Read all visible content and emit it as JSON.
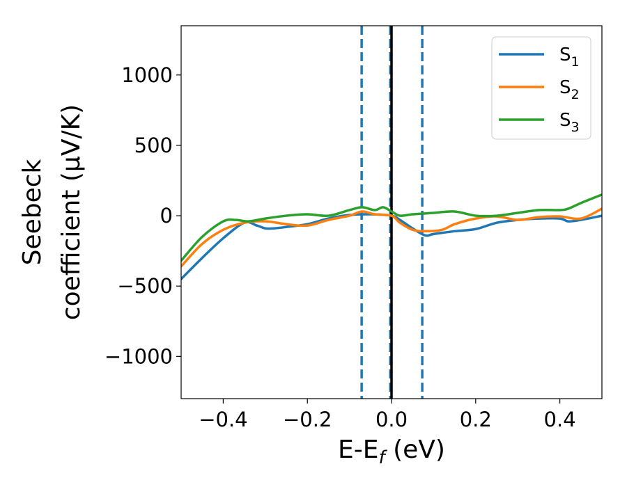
{
  "chart_data": {
    "type": "line",
    "xlabel_main": "E-E",
    "xlabel_sub": "f",
    "xlabel_unit": " (eV)",
    "ylabel_line1": "Seebeck",
    "ylabel_line2": "coefficient  (μV/K)",
    "xlim": [
      -0.5,
      0.5
    ],
    "ylim": [
      -1300,
      1350
    ],
    "x_ticks": [
      -0.4,
      -0.2,
      0.0,
      0.2,
      0.4
    ],
    "x_tick_labels": [
      "−0.4",
      "−0.2",
      "0.0",
      "0.2",
      "0.4"
    ],
    "y_ticks": [
      -1000,
      -500,
      0,
      500,
      1000
    ],
    "y_tick_labels": [
      "−1000",
      "−500",
      "0",
      "500",
      "1000"
    ],
    "legend_position": "top-right",
    "vlines": [
      {
        "x": -0.071,
        "style": "dashed",
        "color": "#1f77b4"
      },
      {
        "x": -0.003,
        "style": "dashed",
        "color": "#1f77b4"
      },
      {
        "x": 0.0,
        "style": "solid",
        "color": "#000000"
      },
      {
        "x": 0.073,
        "style": "dashed",
        "color": "#1f77b4"
      }
    ],
    "series": [
      {
        "name": "S",
        "sub": "1",
        "color": "#1f77b4",
        "x": [
          -0.5,
          -0.45,
          -0.4,
          -0.35,
          -0.32,
          -0.3,
          -0.28,
          -0.25,
          -0.2,
          -0.15,
          -0.1,
          -0.05,
          0.0,
          0.02,
          0.05,
          0.08,
          0.1,
          0.15,
          0.2,
          0.25,
          0.3,
          0.35,
          0.4,
          0.42,
          0.45,
          0.5
        ],
        "values": [
          -450,
          -300,
          -160,
          -50,
          -70,
          -90,
          -90,
          -80,
          -60,
          -20,
          5,
          10,
          0,
          -30,
          -90,
          -140,
          -130,
          -110,
          -95,
          -50,
          -30,
          -20,
          -20,
          -40,
          -30,
          0
        ]
      },
      {
        "name": "S",
        "sub": "2",
        "color": "#ff7f0e",
        "x": [
          -0.5,
          -0.45,
          -0.4,
          -0.35,
          -0.3,
          -0.25,
          -0.2,
          -0.15,
          -0.1,
          -0.07,
          -0.04,
          0.0,
          0.02,
          0.05,
          0.08,
          0.12,
          0.15,
          0.2,
          0.25,
          0.3,
          0.35,
          0.4,
          0.45,
          0.5
        ],
        "values": [
          -360,
          -200,
          -100,
          -50,
          -40,
          -60,
          -70,
          -30,
          0,
          30,
          10,
          0,
          -50,
          -100,
          -110,
          -100,
          -60,
          -20,
          -5,
          -30,
          -10,
          -5,
          -20,
          50
        ]
      },
      {
        "name": "S",
        "sub": "3",
        "color": "#2ca02c",
        "x": [
          -0.5,
          -0.45,
          -0.4,
          -0.37,
          -0.34,
          -0.3,
          -0.25,
          -0.2,
          -0.15,
          -0.1,
          -0.07,
          -0.04,
          -0.02,
          0.0,
          0.02,
          0.05,
          0.1,
          0.15,
          0.2,
          0.25,
          0.3,
          0.35,
          0.4,
          0.42,
          0.45,
          0.5
        ],
        "values": [
          -320,
          -150,
          -40,
          -30,
          -40,
          -20,
          0,
          10,
          0,
          40,
          60,
          40,
          60,
          30,
          0,
          10,
          20,
          30,
          0,
          0,
          20,
          40,
          40,
          50,
          90,
          150
        ]
      }
    ]
  }
}
